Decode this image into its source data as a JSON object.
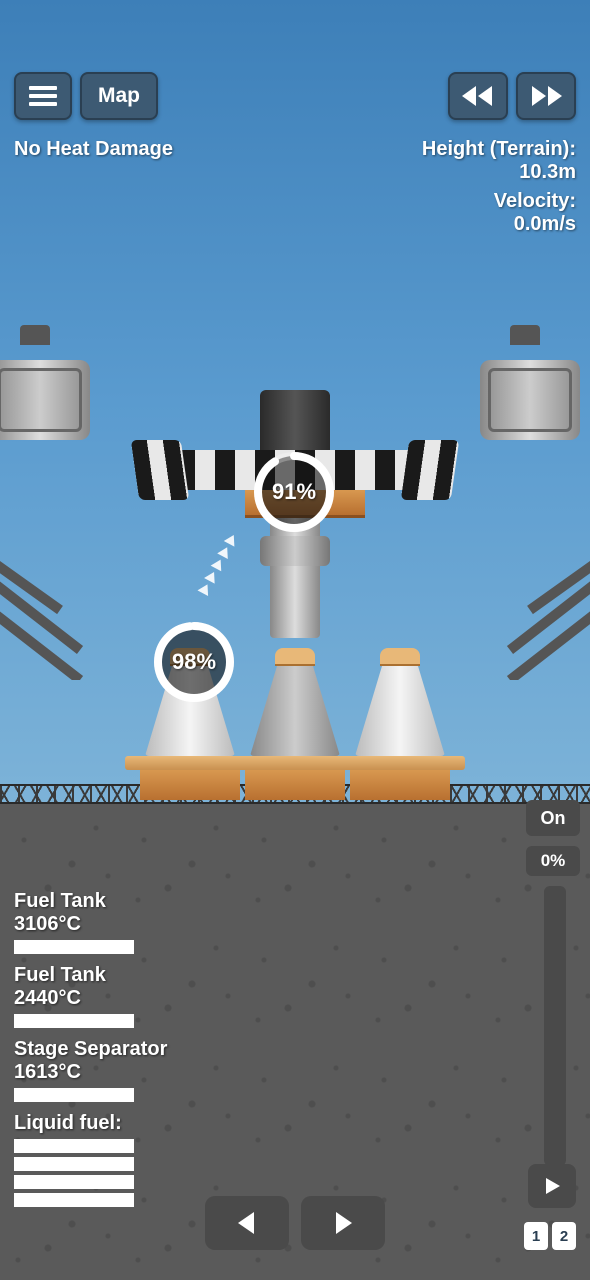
{
  "colors": {
    "sky_top": "#3d7fb8",
    "sky_bottom": "#7db3d8",
    "ground": "#5a5a5a",
    "button_bg": "#3d5a73",
    "button_border": "#2a3f52",
    "panel_bg": "#4a4a4a",
    "text": "#ffffff",
    "orange": "#d89850",
    "checker_dark": "#1a1a1a",
    "checker_light": "#e8e8e8",
    "bar_fill": "#ffffff"
  },
  "top": {
    "map_label": "Map"
  },
  "status": {
    "heat": "No Heat Damage",
    "height_label": "Height (Terrain):",
    "height_value": "10.3m",
    "velocity_label": "Velocity:",
    "velocity_value": "0.0m/s"
  },
  "gauges": {
    "upper": {
      "percent": 91,
      "text": "91%",
      "color": "#ffffff"
    },
    "lower": {
      "percent": 98,
      "text": "98%",
      "color": "#ffffff"
    }
  },
  "readouts": [
    {
      "label": "Fuel Tank",
      "value": "3106°C",
      "bar_pct": 100
    },
    {
      "label": "Fuel Tank",
      "value": "2440°C",
      "bar_pct": 100
    },
    {
      "label": "Stage Separator",
      "value": "1613°C",
      "bar_pct": 100
    }
  ],
  "liquid_fuel": {
    "label": "Liquid fuel:",
    "bars": [
      100,
      100,
      100,
      100
    ]
  },
  "throttle": {
    "toggle": "On",
    "percent": "0%",
    "value": 0
  },
  "stages": {
    "numbers": [
      "1",
      "2"
    ]
  }
}
